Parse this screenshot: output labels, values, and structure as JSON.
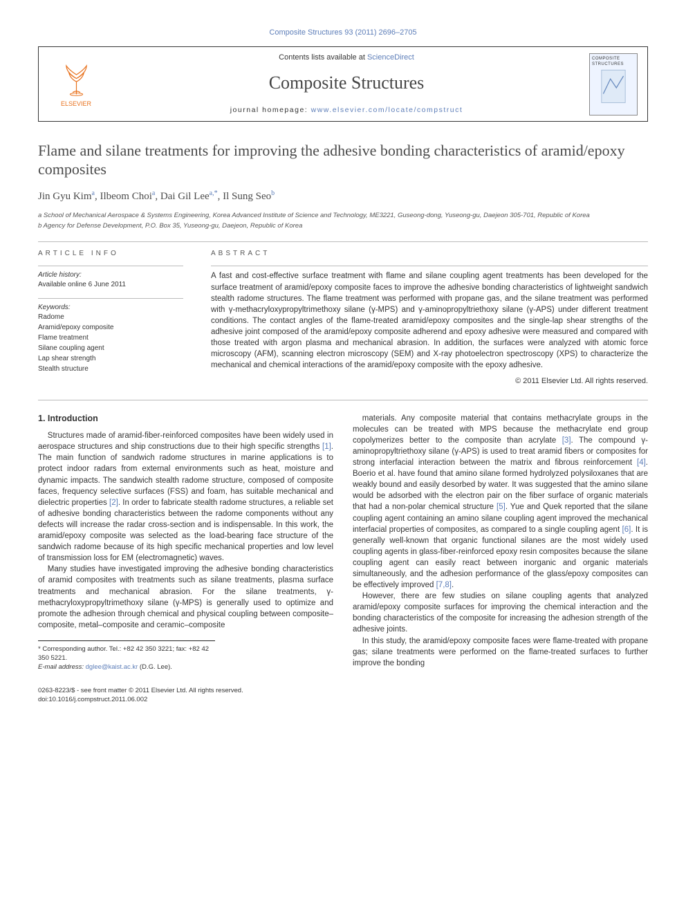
{
  "top_citation": "Composite Structures 93 (2011) 2696–2705",
  "header": {
    "publisher": "ELSEVIER",
    "contents_prefix": "Contents lists available at ",
    "contents_link": "ScienceDirect",
    "journal_name": "Composite Structures",
    "homepage_prefix": "journal homepage: ",
    "homepage_url": "www.elsevier.com/locate/compstruct",
    "thumb_label": "COMPOSITE STRUCTURES"
  },
  "article": {
    "title": "Flame and silane treatments for improving the adhesive bonding characteristics of aramid/epoxy composites",
    "authors_html": "Jin Gyu Kim<sup>a</sup>, Ilbeom Choi<sup>a</sup>, Dai Gil Lee<sup>a,*</sup>, Il Sung Seo<sup>b</sup>",
    "affiliations": [
      "a School of Mechanical Aerospace & Systems Engineering, Korea Advanced Institute of Science and Technology, ME3221, Guseong-dong, Yuseong-gu, Daejeon 305-701, Republic of Korea",
      "b Agency for Defense Development, P.O. Box 35, Yuseong-gu, Daejeon, Republic of Korea"
    ]
  },
  "info": {
    "label": "ARTICLE INFO",
    "history_label": "Article history:",
    "history_value": "Available online 6 June 2011",
    "keywords_label": "Keywords:",
    "keywords": [
      "Radome",
      "Aramid/epoxy composite",
      "Flame treatment",
      "Silane coupling agent",
      "Lap shear strength",
      "Stealth structure"
    ]
  },
  "abstract": {
    "label": "ABSTRACT",
    "text": "A fast and cost-effective surface treatment with flame and silane coupling agent treatments has been developed for the surface treatment of aramid/epoxy composite faces to improve the adhesive bonding characteristics of lightweight sandwich stealth radome structures. The flame treatment was performed with propane gas, and the silane treatment was performed with γ-methacryloxypropyltrimethoxy silane (γ-MPS) and γ-aminopropyltriethoxy silane (γ-APS) under different treatment conditions. The contact angles of the flame-treated aramid/epoxy composites and the single-lap shear strengths of the adhesive joint composed of the aramid/epoxy composite adherend and epoxy adhesive were measured and compared with those treated with argon plasma and mechanical abrasion. In addition, the surfaces were analyzed with atomic force microscopy (AFM), scanning electron microscopy (SEM) and X-ray photoelectron spectroscopy (XPS) to characterize the mechanical and chemical interactions of the aramid/epoxy composite with the epoxy adhesive.",
    "copyright": "© 2011 Elsevier Ltd. All rights reserved."
  },
  "body": {
    "section_heading": "1. Introduction",
    "p1": "Structures made of aramid-fiber-reinforced composites have been widely used in aerospace structures and ship constructions due to their high specific strengths [1]. The main function of sandwich radome structures in marine applications is to protect indoor radars from external environments such as heat, moisture and dynamic impacts. The sandwich stealth radome structure, composed of composite faces, frequency selective surfaces (FSS) and foam, has suitable mechanical and dielectric properties [2]. In order to fabricate stealth radome structures, a reliable set of adhesive bonding characteristics between the radome components without any defects will increase the radar cross-section and is indispensable. In this work, the aramid/epoxy composite was selected as the load-bearing face structure of the sandwich radome because of its high specific mechanical properties and low level of transmission loss for EM (electromagnetic) waves.",
    "p2": "Many studies have investigated improving the adhesive bonding characteristics of aramid composites with treatments such as silane treatments, plasma surface treatments and mechanical abrasion. For the silane treatments, γ-methacryloxypropyltrimethoxy silane (γ-MPS) is generally used to optimize and promote the adhesion through chemical and physical coupling between composite–composite, metal–composite and ceramic–composite",
    "p3": "materials. Any composite material that contains methacrylate groups in the molecules can be treated with MPS because the methacrylate end group copolymerizes better to the composite than acrylate [3]. The compound γ-aminopropyltriethoxy silane (γ-APS) is used to treat aramid fibers or composites for strong interfacial interaction between the matrix and fibrous reinforcement [4]. Boerio et al. have found that amino silane formed hydrolyzed polysiloxanes that are weakly bound and easily desorbed by water. It was suggested that the amino silane would be adsorbed with the electron pair on the fiber surface of organic materials that had a non-polar chemical structure [5]. Yue and Quek reported that the silane coupling agent containing an amino silane coupling agent improved the mechanical interfacial properties of composites, as compared to a single coupling agent [6]. It is generally well-known that organic functional silanes are the most widely used coupling agents in glass-fiber-reinforced epoxy resin composites because the silane coupling agent can easily react between inorganic and organic materials simultaneously, and the adhesion performance of the glass/epoxy composites can be effectively improved [7,8].",
    "p4": "However, there are few studies on silane coupling agents that analyzed aramid/epoxy composite surfaces for improving the chemical interaction and the bonding characteristics of the composite for increasing the adhesion strength of the adhesive joints.",
    "p5": "In this study, the aramid/epoxy composite faces were flame-treated with propane gas; silane treatments were performed on the flame-treated surfaces to further improve the bonding"
  },
  "footnote": {
    "corr": "* Corresponding author. Tel.: +82 42 350 3221; fax: +82 42 350 5221.",
    "email_label": "E-mail address: ",
    "email": "dglee@kaist.ac.kr",
    "email_suffix": " (D.G. Lee)."
  },
  "footer": {
    "line1": "0263-8223/$ - see front matter © 2011 Elsevier Ltd. All rights reserved.",
    "line2": "doi:10.1016/j.compstruct.2011.06.002"
  },
  "colors": {
    "link": "#5c7db8",
    "elsevier_orange": "#e8711c",
    "text": "#333333",
    "heading": "#4a4a4a"
  }
}
